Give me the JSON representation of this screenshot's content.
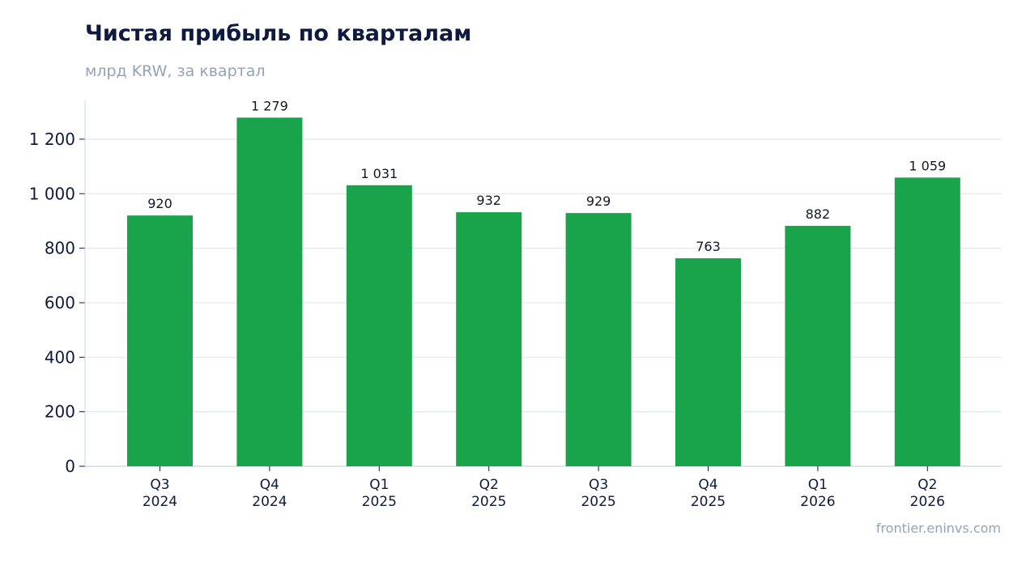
{
  "chart_data": {
    "type": "bar",
    "title": "Чистая прибыль по кварталам",
    "subtitle": "млрд KRW, за квартал",
    "categories": [
      [
        "Q3",
        "2024"
      ],
      [
        "Q4",
        "2024"
      ],
      [
        "Q1",
        "2025"
      ],
      [
        "Q2",
        "2025"
      ],
      [
        "Q3",
        "2025"
      ],
      [
        "Q4",
        "2025"
      ],
      [
        "Q1",
        "2026"
      ],
      [
        "Q2",
        "2026"
      ]
    ],
    "values": [
      920,
      1279,
      1031,
      932,
      929,
      763,
      882,
      1059
    ],
    "value_labels": [
      "920",
      "1 279",
      "1 031",
      "932",
      "929",
      "763",
      "882",
      "1 059"
    ],
    "yticks": [
      0,
      200,
      400,
      600,
      800,
      1000,
      1200
    ],
    "ytick_labels": [
      "0",
      "200",
      "400",
      "600",
      "800",
      "1 000",
      "1 200"
    ],
    "ylim": [
      0,
      1343
    ],
    "xlabel": "",
    "ylabel": "",
    "grid": true,
    "legend": "none",
    "colors": {
      "bar": "#19a34a",
      "grid": "#e2e8f0",
      "axis": "#cbd5e1",
      "tick_text": "#0e1a40",
      "value_text": "#111827",
      "title": "#0e1a40",
      "muted": "#94a3b8"
    }
  },
  "source": "frontier.eninvs.com"
}
